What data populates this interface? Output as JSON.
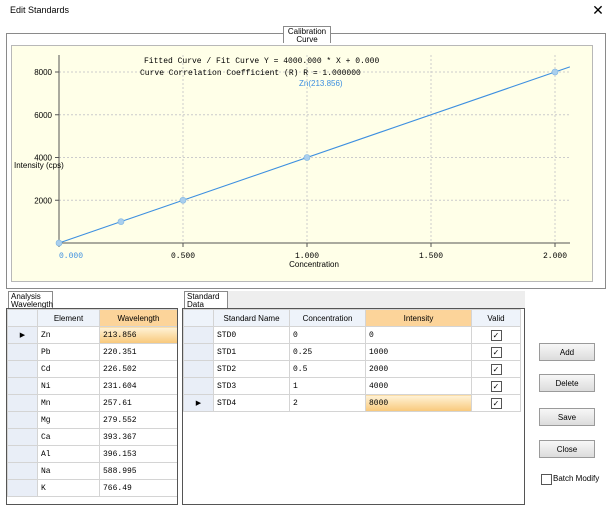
{
  "window": {
    "title": "Edit Standards",
    "close_glyph": "✕"
  },
  "calibration": {
    "tab_label": "Calibration Curve",
    "fit_line": "Fitted Curve / Fit Curve  Y = 4000.000 * X + 0.000",
    "corr_line": "Curve Correlation Coefficient (R) R = 1.000000",
    "point_label": "Zn(213.856)",
    "colors": {
      "plot_bg": "#ffffe8",
      "line": "#3d8fe0",
      "point": "#a9cfee"
    }
  },
  "chart_data": {
    "type": "line",
    "xlabel": "Concentration",
    "ylabel": "Intensity (cps)",
    "xlim": [
      0,
      2
    ],
    "ylim": [
      0,
      8000
    ],
    "x_ticks": [
      "0.000",
      "0.500",
      "1.000",
      "1.500",
      "2.000"
    ],
    "y_ticks": [
      "2000",
      "4000",
      "6000",
      "8000"
    ],
    "series": [
      {
        "name": "Zn(213.856)",
        "x": [
          0,
          0.25,
          0.5,
          1,
          2
        ],
        "y": [
          0,
          1000,
          2000,
          4000,
          8000
        ]
      }
    ],
    "grid": true
  },
  "analysis": {
    "tab_label": "Analysis Wavelength",
    "headers": [
      "Element",
      "Wavelength"
    ],
    "rows": [
      [
        "Zn",
        "213.856"
      ],
      [
        "Pb",
        "220.351"
      ],
      [
        "Cd",
        "226.502"
      ],
      [
        "Ni",
        "231.604"
      ],
      [
        "Mn",
        "257.61"
      ],
      [
        "Mg",
        "279.552"
      ],
      [
        "Ca",
        "393.367"
      ],
      [
        "Al",
        "396.153"
      ],
      [
        "Na",
        "588.995"
      ],
      [
        "K",
        "766.49"
      ]
    ]
  },
  "standards": {
    "tab_label": "Standard Data",
    "headers": [
      "Standard Name",
      "Concentration",
      "Intensity",
      "Valid"
    ],
    "rows": [
      [
        "STD0",
        "0",
        "0",
        true
      ],
      [
        "STD1",
        "0.25",
        "1000",
        true
      ],
      [
        "STD2",
        "0.5",
        "2000",
        true
      ],
      [
        "STD3",
        "1",
        "4000",
        true
      ],
      [
        "STD4",
        "2",
        "8000",
        true
      ]
    ]
  },
  "buttons": {
    "add": "Add",
    "delete": "Delete",
    "save": "Save",
    "close": "Close"
  },
  "batch_modify": {
    "label": "Batch Modify",
    "checked": false
  }
}
